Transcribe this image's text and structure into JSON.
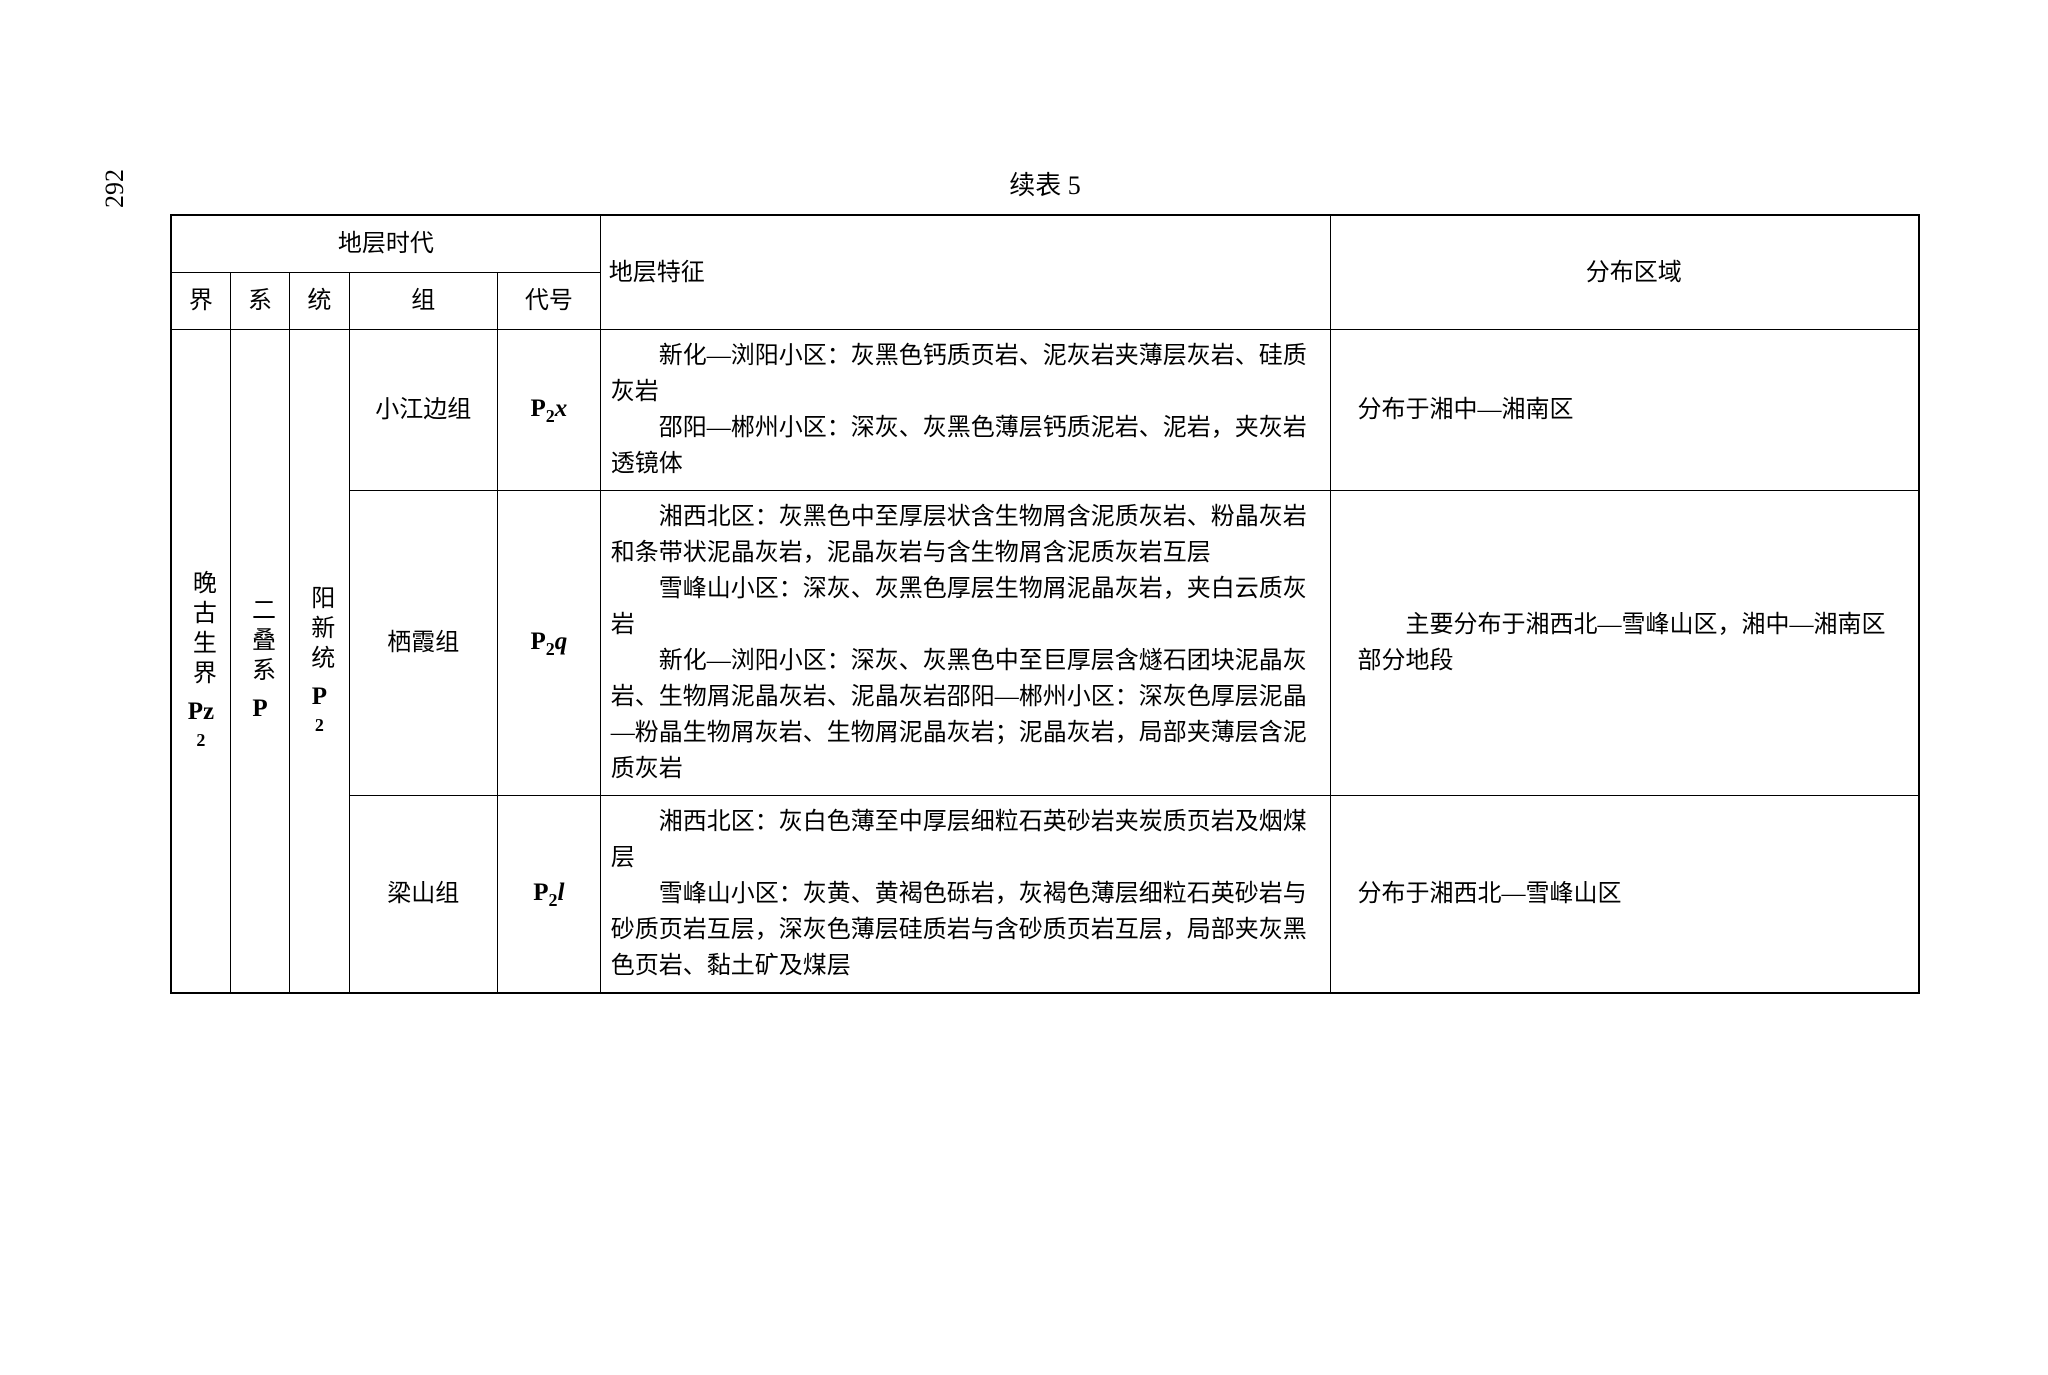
{
  "page_number": "292",
  "caption": "续表 5",
  "header_group": "地层时代",
  "headers": {
    "jie": "界",
    "xi": "系",
    "tong": "统",
    "zu": "组",
    "daihao": "代号",
    "tezheng": "地层特征",
    "quyu": "分布区域"
  },
  "jie_label": "晚古生界",
  "jie_symbol": "Pz",
  "jie_sub": "2",
  "xi_label": "二叠系",
  "xi_symbol": "P",
  "tong_label": "阳新统",
  "tong_symbol": "P",
  "tong_sub": "2",
  "rows": [
    {
      "zu": "小江边组",
      "daihao_main": "P",
      "daihao_sub": "2",
      "daihao_suffix": "x",
      "tezheng_p1": "新化—浏阳小区：灰黑色钙质页岩、泥灰岩夹薄层灰岩、硅质灰岩",
      "tezheng_p2": "邵阳—郴州小区：深灰、灰黑色薄层钙质泥岩、泥岩，夹灰岩透镜体",
      "quyu": "分布于湘中—湘南区"
    },
    {
      "zu": "栖霞组",
      "daihao_main": "P",
      "daihao_sub": "2",
      "daihao_suffix": "q",
      "tezheng_p1": "湘西北区：灰黑色中至厚层状含生物屑含泥质灰岩、粉晶灰岩和条带状泥晶灰岩，泥晶灰岩与含生物屑含泥质灰岩互层",
      "tezheng_p2": "雪峰山小区：深灰、灰黑色厚层生物屑泥晶灰岩，夹白云质灰岩",
      "tezheng_p3": "新化—浏阳小区：深灰、灰黑色中至巨厚层含燧石团块泥晶灰岩、生物屑泥晶灰岩、泥晶灰岩邵阳—郴州小区：深灰色厚层泥晶—粉晶生物屑灰岩、生物屑泥晶灰岩；泥晶灰岩，局部夹薄层含泥质灰岩",
      "quyu": "主要分布于湘西北—雪峰山区，湘中—湘南区部分地段"
    },
    {
      "zu": "梁山组",
      "daihao_main": "P",
      "daihao_sub": "2",
      "daihao_suffix": "l",
      "tezheng_p1": "湘西北区：灰白色薄至中厚层细粒石英砂岩夹炭质页岩及烟煤层",
      "tezheng_p2": "雪峰山小区：灰黄、黄褐色砾岩，灰褐色薄层细粒石英砂岩与砂质页岩互层，深灰色薄层硅质岩与含砂质页岩互层，局部夹灰黑色页岩、黏土矿及煤层",
      "quyu": "分布于湘西北—雪峰山区"
    }
  ],
  "style": {
    "page_bg": "#ffffff",
    "text_color": "#000000",
    "border_color": "#000000",
    "outer_border_width": 2.5,
    "inner_border_width": 1.5,
    "base_font_size": 24,
    "caption_font_size": 26,
    "font_family_cjk": "SimSun",
    "font_family_latin": "Times New Roman"
  }
}
